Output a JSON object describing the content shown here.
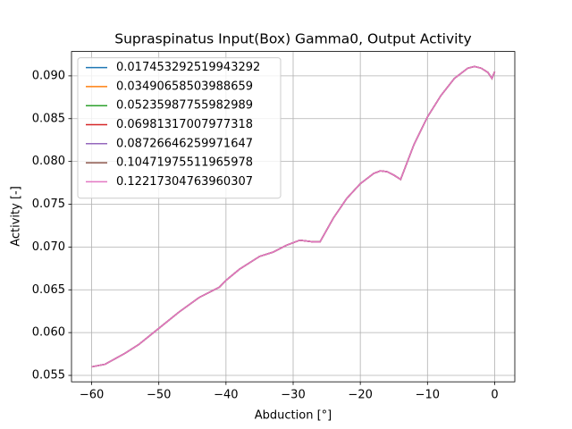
{
  "chart_data": {
    "type": "line",
    "title": "Supraspinatus Input(Box) Gamma0, Output Activity",
    "xlabel": "Abduction [°]",
    "ylabel": "Activity [-]",
    "x": [
      -60,
      -58,
      -55,
      -53,
      -50,
      -47,
      -44,
      -41,
      -40,
      -38,
      -35,
      -33,
      -31,
      -29,
      -27,
      -26,
      -24,
      -22,
      -20,
      -18,
      -17,
      -16,
      -15,
      -14,
      -12,
      -10,
      -8,
      -6,
      -4,
      -3,
      -2,
      -1,
      -0.4,
      0
    ],
    "series": [
      {
        "name": "0.017453292519943292",
        "color": "#1f77b4",
        "values": [
          0.056,
          0.0563,
          0.0576,
          0.0586,
          0.0605,
          0.0624,
          0.0641,
          0.0653,
          0.0661,
          0.0674,
          0.0689,
          0.0694,
          0.0702,
          0.0708,
          0.0706,
          0.0706,
          0.0734,
          0.0757,
          0.0774,
          0.0786,
          0.0789,
          0.0788,
          0.0784,
          0.0779,
          0.082,
          0.0852,
          0.0877,
          0.0897,
          0.0909,
          0.0911,
          0.0909,
          0.0904,
          0.0897,
          0.0905
        ]
      },
      {
        "name": "0.03490658503988659",
        "color": "#ff7f0e",
        "values": [
          0.056,
          0.0563,
          0.0576,
          0.0586,
          0.0605,
          0.0624,
          0.0641,
          0.0653,
          0.0661,
          0.0674,
          0.0689,
          0.0694,
          0.0702,
          0.0708,
          0.0706,
          0.0706,
          0.0734,
          0.0757,
          0.0774,
          0.0786,
          0.0789,
          0.0788,
          0.0784,
          0.0779,
          0.082,
          0.0852,
          0.0877,
          0.0897,
          0.0909,
          0.0911,
          0.0909,
          0.0904,
          0.0897,
          0.0905
        ]
      },
      {
        "name": "0.05235987755982989",
        "color": "#2ca02c",
        "values": [
          0.056,
          0.0563,
          0.0576,
          0.0586,
          0.0605,
          0.0624,
          0.0641,
          0.0653,
          0.0661,
          0.0674,
          0.0689,
          0.0694,
          0.0702,
          0.0708,
          0.0706,
          0.0706,
          0.0734,
          0.0757,
          0.0774,
          0.0786,
          0.0789,
          0.0788,
          0.0784,
          0.0779,
          0.082,
          0.0852,
          0.0877,
          0.0897,
          0.0909,
          0.0911,
          0.0909,
          0.0904,
          0.0897,
          0.0905
        ]
      },
      {
        "name": "0.06981317007977318",
        "color": "#d62728",
        "values": [
          0.056,
          0.0563,
          0.0576,
          0.0586,
          0.0605,
          0.0624,
          0.0641,
          0.0653,
          0.0661,
          0.0674,
          0.0689,
          0.0694,
          0.0702,
          0.0708,
          0.0706,
          0.0706,
          0.0734,
          0.0757,
          0.0774,
          0.0786,
          0.0789,
          0.0788,
          0.0784,
          0.0779,
          0.082,
          0.0852,
          0.0877,
          0.0897,
          0.0909,
          0.0911,
          0.0909,
          0.0904,
          0.0897,
          0.0905
        ]
      },
      {
        "name": "0.08726646259971647",
        "color": "#9467bd",
        "values": [
          0.056,
          0.0563,
          0.0576,
          0.0586,
          0.0605,
          0.0624,
          0.0641,
          0.0653,
          0.0661,
          0.0674,
          0.0689,
          0.0694,
          0.0702,
          0.0708,
          0.0706,
          0.0706,
          0.0734,
          0.0757,
          0.0774,
          0.0786,
          0.0789,
          0.0788,
          0.0784,
          0.0779,
          0.082,
          0.0852,
          0.0877,
          0.0897,
          0.0909,
          0.0911,
          0.0909,
          0.0904,
          0.0897,
          0.0905
        ]
      },
      {
        "name": "0.10471975511965978",
        "color": "#8c564b",
        "values": [
          0.056,
          0.0563,
          0.0576,
          0.0586,
          0.0605,
          0.0624,
          0.0641,
          0.0653,
          0.0661,
          0.0674,
          0.0689,
          0.0694,
          0.0702,
          0.0708,
          0.0706,
          0.0706,
          0.0734,
          0.0757,
          0.0774,
          0.0786,
          0.0789,
          0.0788,
          0.0784,
          0.0779,
          0.082,
          0.0852,
          0.0877,
          0.0897,
          0.0909,
          0.0911,
          0.0909,
          0.0904,
          0.0897,
          0.0905
        ]
      },
      {
        "name": "0.12217304763960307",
        "color": "#e377c2",
        "values": [
          0.056,
          0.0563,
          0.0576,
          0.0586,
          0.0605,
          0.0624,
          0.0641,
          0.0653,
          0.0661,
          0.0674,
          0.0689,
          0.0694,
          0.0702,
          0.0708,
          0.0706,
          0.0706,
          0.0734,
          0.0757,
          0.0774,
          0.0786,
          0.0789,
          0.0788,
          0.0784,
          0.0779,
          0.082,
          0.0852,
          0.0877,
          0.0897,
          0.0909,
          0.0911,
          0.0909,
          0.0904,
          0.0897,
          0.0905
        ]
      }
    ],
    "xlim": [
      -63,
      3
    ],
    "xticks": [
      {
        "value": -60,
        "label": "−60"
      },
      {
        "value": -50,
        "label": "−50"
      },
      {
        "value": -40,
        "label": "−40"
      },
      {
        "value": -30,
        "label": "−30"
      },
      {
        "value": -20,
        "label": "−20"
      },
      {
        "value": -10,
        "label": "−10"
      },
      0
    ],
    "ylim": [
      0.05425,
      0.09285
    ],
    "yticks": [
      0.055,
      {
        "value": 0.06,
        "label": "0.060"
      },
      0.065,
      {
        "value": 0.07,
        "label": "0.070"
      },
      0.075,
      {
        "value": 0.08,
        "label": "0.080"
      },
      0.085,
      {
        "value": 0.09,
        "label": "0.090"
      }
    ],
    "grid": true,
    "legend": "upper left"
  }
}
